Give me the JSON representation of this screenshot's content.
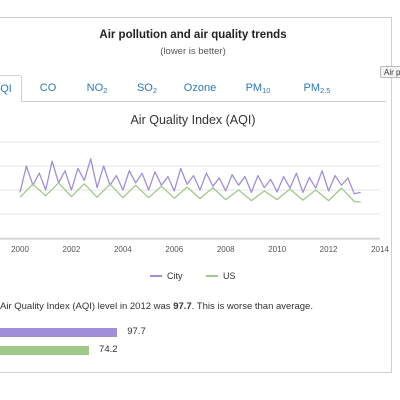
{
  "header": {
    "title": "Air pollution and air quality trends",
    "subtitle": "(lower is better)",
    "tooltip_label": "Air po"
  },
  "tabs": [
    {
      "label": "AQI",
      "sub": "",
      "shown": "QI",
      "active": true
    },
    {
      "label": "CO",
      "sub": "",
      "shown": "CO",
      "active": false
    },
    {
      "label": "NO",
      "sub": "2",
      "shown": "NO",
      "active": false
    },
    {
      "label": "SO",
      "sub": "2",
      "shown": "SO",
      "active": false
    },
    {
      "label": "Ozone",
      "sub": "",
      "shown": "Ozone",
      "active": false
    },
    {
      "label": "PM",
      "sub": "10",
      "shown": "PM",
      "active": false
    },
    {
      "label": "PM",
      "sub": "2.5",
      "shown": "PM",
      "active": false
    }
  ],
  "chart_data": {
    "type": "line",
    "title": "Air Quality Index (AQI)",
    "xlabel": "",
    "ylabel": "",
    "xlim": [
      2000,
      2014
    ],
    "xticks": [
      "2000",
      "2002",
      "2004",
      "2006",
      "2008",
      "2010",
      "2012",
      "2014"
    ],
    "ylim": [
      0,
      200
    ],
    "grid": true,
    "legend_position": "bottom",
    "series": [
      {
        "name": "City",
        "color": "#a08fd8",
        "x": [
          2000.0,
          2000.25,
          2000.5,
          2000.75,
          2001.0,
          2001.25,
          2001.5,
          2001.75,
          2002.0,
          2002.25,
          2002.5,
          2002.75,
          2003.0,
          2003.25,
          2003.5,
          2003.75,
          2004.0,
          2004.25,
          2004.5,
          2004.75,
          2005.0,
          2005.25,
          2005.5,
          2005.75,
          2006.0,
          2006.25,
          2006.5,
          2006.75,
          2007.0,
          2007.25,
          2007.5,
          2007.75,
          2008.0,
          2008.25,
          2008.5,
          2008.75,
          2009.0,
          2009.25,
          2009.5,
          2009.75,
          2010.0,
          2010.25,
          2010.5,
          2010.75,
          2011.0,
          2011.25,
          2011.5,
          2011.75,
          2012.0,
          2012.25,
          2012.5,
          2012.75,
          2013.0,
          2013.25
        ],
        "values": [
          95,
          150,
          110,
          135,
          100,
          160,
          115,
          140,
          100,
          145,
          120,
          165,
          105,
          150,
          110,
          130,
          100,
          140,
          115,
          135,
          100,
          138,
          110,
          128,
          98,
          145,
          112,
          130,
          100,
          135,
          108,
          125,
          98,
          132,
          110,
          128,
          95,
          130,
          105,
          122,
          96,
          128,
          104,
          135,
          95,
          126,
          104,
          140,
          98,
          130,
          110,
          125,
          92,
          95
        ]
      },
      {
        "name": "US",
        "color": "#9fc98a",
        "x": [
          2000.0,
          2000.5,
          2001.0,
          2001.5,
          2002.0,
          2002.5,
          2003.0,
          2003.5,
          2004.0,
          2004.5,
          2005.0,
          2005.5,
          2006.0,
          2006.5,
          2007.0,
          2007.5,
          2008.0,
          2008.5,
          2009.0,
          2009.5,
          2010.0,
          2010.5,
          2011.0,
          2011.5,
          2012.0,
          2012.5,
          2013.0,
          2013.25
        ],
        "values": [
          85,
          112,
          88,
          115,
          86,
          113,
          85,
          112,
          84,
          110,
          84,
          108,
          83,
          106,
          82,
          105,
          80,
          100,
          78,
          98,
          80,
          102,
          79,
          100,
          78,
          104,
          76,
          75
        ]
      }
    ]
  },
  "summary": {
    "prefix": "Air Quality Index (AQI) level in 2012 was ",
    "value": "97.7",
    "suffix": ". This is worse than average."
  },
  "comparison": [
    {
      "label": "City",
      "value": 97.7,
      "display": "97.7",
      "color": "#a08fd8"
    },
    {
      "label": "US",
      "value": 74.2,
      "display": "74.2",
      "color": "#9fc98a"
    }
  ]
}
